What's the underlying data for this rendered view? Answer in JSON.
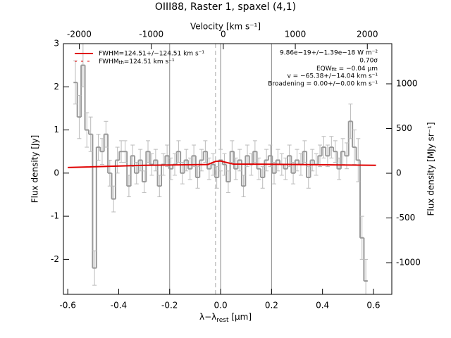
{
  "chart_data": {
    "type": "line",
    "title": "OIII88, Raster 1, spaxel (4,1)",
    "x_label": {
      "main": "λ−λ",
      "sub": "rest",
      "rest": " [μm]"
    },
    "x2_label": "Velocity [km s⁻¹]",
    "y_label": "Flux density [Jy]",
    "y2_label": "Flux density [MJy sr⁻¹]",
    "xlim": [
      -0.617,
      0.672
    ],
    "xticks": [
      -0.6,
      -0.4,
      -0.2,
      {
        "value": 0,
        "label": "0.0"
      },
      0.2,
      0.4,
      0.6
    ],
    "x2lim": [
      -2220,
      2340
    ],
    "x2ticks": [
      -2000,
      -1000,
      0,
      1000,
      2000
    ],
    "ylim": [
      -2.81,
      3.0
    ],
    "yticks": [
      -2,
      -1,
      0,
      1,
      2,
      3
    ],
    "y2lim": [
      -1354,
      1449
    ],
    "y2ticks": [
      -1000,
      -500,
      0,
      500,
      1000
    ],
    "vlines": [
      -0.2,
      0,
      0.2
    ],
    "dashed_vline": -0.02,
    "spectrum": {
      "color": "#999999",
      "x": [
        -0.57,
        -0.555,
        -0.54,
        -0.525,
        -0.51,
        -0.495,
        -0.48,
        -0.465,
        -0.45,
        -0.435,
        -0.42,
        -0.405,
        -0.39,
        -0.375,
        -0.36,
        -0.345,
        -0.33,
        -0.315,
        -0.3,
        -0.285,
        -0.27,
        -0.255,
        -0.24,
        -0.225,
        -0.21,
        -0.195,
        -0.18,
        -0.165,
        -0.15,
        -0.135,
        -0.12,
        -0.105,
        -0.09,
        -0.075,
        -0.06,
        -0.045,
        -0.03,
        -0.015,
        0,
        0.015,
        0.03,
        0.045,
        0.06,
        0.075,
        0.09,
        0.105,
        0.12,
        0.135,
        0.15,
        0.165,
        0.18,
        0.195,
        0.21,
        0.225,
        0.24,
        0.255,
        0.27,
        0.285,
        0.3,
        0.315,
        0.33,
        0.345,
        0.36,
        0.375,
        0.39,
        0.405,
        0.42,
        0.435,
        0.45,
        0.465,
        0.48,
        0.495,
        0.51,
        0.525,
        0.54,
        0.555,
        0.57
      ],
      "values": [
        2.1,
        1.3,
        2.5,
        1.0,
        0.9,
        -2.2,
        0.6,
        0.5,
        0.9,
        0.0,
        -0.6,
        0.3,
        0.5,
        0.5,
        -0.3,
        0.4,
        0.0,
        0.3,
        -0.2,
        0.5,
        0.2,
        0.3,
        -0.3,
        0.2,
        0.4,
        0.1,
        0.2,
        0.5,
        0.0,
        0.3,
        0.1,
        0.4,
        -0.1,
        0.3,
        0.5,
        0.1,
        0.2,
        -0.1,
        0.3,
        0.2,
        -0.2,
        0.5,
        0.1,
        0.3,
        -0.3,
        0.4,
        0.2,
        0.5,
        0.1,
        -0.1,
        0.3,
        0.4,
        0.0,
        0.3,
        0.2,
        0.1,
        0.4,
        0.0,
        0.3,
        0.2,
        0.5,
        -0.1,
        0.3,
        0.2,
        0.4,
        0.6,
        0.4,
        0.6,
        0.5,
        0.1,
        0.5,
        0.4,
        1.2,
        0.6,
        0.3,
        -1.5,
        -2.5
      ],
      "errors": [
        0.5,
        0.5,
        0.5,
        0.4,
        0.4,
        0.4,
        0.3,
        0.3,
        0.3,
        0.3,
        0.3,
        0.3,
        0.25,
        0.25,
        0.25,
        0.25,
        0.25,
        0.25,
        0.25,
        0.25,
        0.25,
        0.25,
        0.25,
        0.25,
        0.25,
        0.25,
        0.25,
        0.25,
        0.25,
        0.25,
        0.25,
        0.25,
        0.25,
        0.25,
        0.25,
        0.25,
        0.25,
        0.25,
        0.25,
        0.25,
        0.25,
        0.25,
        0.25,
        0.25,
        0.25,
        0.25,
        0.25,
        0.25,
        0.25,
        0.25,
        0.25,
        0.25,
        0.25,
        0.25,
        0.25,
        0.25,
        0.25,
        0.25,
        0.25,
        0.25,
        0.25,
        0.25,
        0.25,
        0.25,
        0.25,
        0.25,
        0.25,
        0.25,
        0.25,
        0.25,
        0.3,
        0.3,
        0.4,
        0.4,
        0.5,
        0.5,
        0.5
      ]
    },
    "model": {
      "name": "FWHM=124.51+/−124.51 km s⁻¹",
      "color": "#e00000",
      "x": [
        -0.6,
        -0.3,
        -0.05,
        -0.02,
        0,
        0.02,
        0.05,
        0.3,
        0.61
      ],
      "values": [
        0.13,
        0.18,
        0.2,
        0.27,
        0.28,
        0.25,
        0.21,
        0.2,
        0.18
      ]
    },
    "legend_th": {
      "main": "FWHM",
      "sub": "th",
      "rest": "=124.51 km s⁻¹",
      "color": "#e00000"
    },
    "annotations": [
      "9.86e−19+/−1.39e−18 W m⁻²",
      "0.70σ"
    ],
    "eqw": {
      "main": "EQW",
      "sub": "fit",
      "rest": " = −0.04 μm"
    },
    "annotations2": [
      "v = −65.38+/−14.04 km s⁻¹",
      "Broadening = 0.00+/−0.00 km s⁻¹"
    ]
  }
}
